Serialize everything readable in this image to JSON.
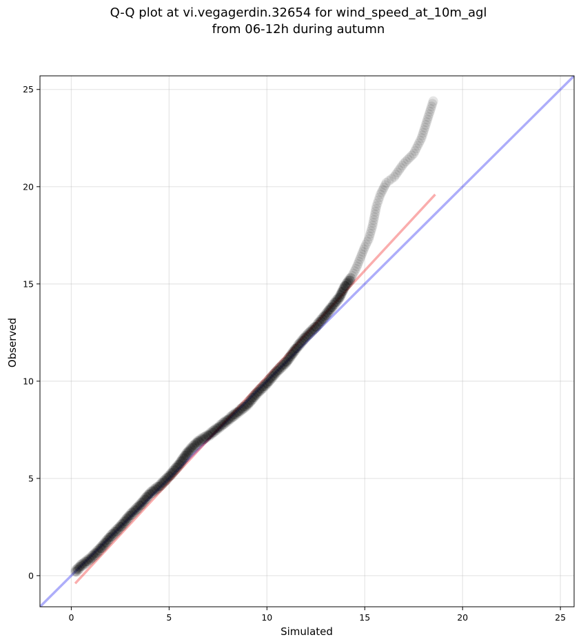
{
  "chart_data": {
    "type": "scatter",
    "title_lines": [
      "Q-Q plot at vi.vegagerdin.32654 for wind_speed_at_10m_agl",
      "from 06-12h during autumn"
    ],
    "xlabel": "Simulated",
    "ylabel": "Observed",
    "xlim": [
      -1.6,
      25.7
    ],
    "ylim": [
      -1.6,
      25.7
    ],
    "xticks": [
      0,
      5,
      10,
      15,
      20,
      25
    ],
    "yticks": [
      0,
      5,
      10,
      15,
      20,
      25
    ],
    "grid": true,
    "colors": {
      "points": "#000000",
      "identity_line": "#0000ee",
      "fit_line": "#ee0000"
    },
    "identity_line": {
      "x": [
        -1.6,
        25.7
      ],
      "y": [
        -1.6,
        25.7
      ]
    },
    "fit_line": {
      "x": [
        0.2,
        18.6
      ],
      "y": [
        -0.4,
        19.6
      ]
    },
    "quantiles": {
      "x": [
        0.2,
        0.5,
        1.0,
        1.5,
        2.0,
        2.5,
        3.0,
        3.5,
        4.0,
        4.5,
        5.0,
        5.5,
        6.0,
        6.5,
        7.0,
        7.5,
        8.0,
        8.5,
        9.0,
        9.5,
        10.0,
        10.5,
        11.0,
        11.5,
        12.0,
        12.5,
        13.0,
        13.3,
        13.7,
        14.0,
        14.3,
        14.6,
        14.8,
        15.0,
        15.2,
        15.4,
        15.6,
        15.8,
        16.1,
        16.5,
        17.0,
        17.5,
        17.9,
        18.5
      ],
      "y": [
        0.2,
        0.5,
        0.9,
        1.4,
        2.0,
        2.5,
        3.1,
        3.6,
        4.2,
        4.6,
        5.1,
        5.7,
        6.4,
        6.9,
        7.2,
        7.6,
        8.0,
        8.4,
        8.8,
        9.4,
        9.9,
        10.5,
        11.0,
        11.7,
        12.3,
        12.8,
        13.4,
        13.8,
        14.3,
        14.9,
        15.3,
        15.9,
        16.4,
        16.9,
        17.3,
        18.0,
        19.0,
        19.6,
        20.2,
        20.5,
        21.2,
        21.7,
        22.5,
        24.4
      ]
    }
  }
}
